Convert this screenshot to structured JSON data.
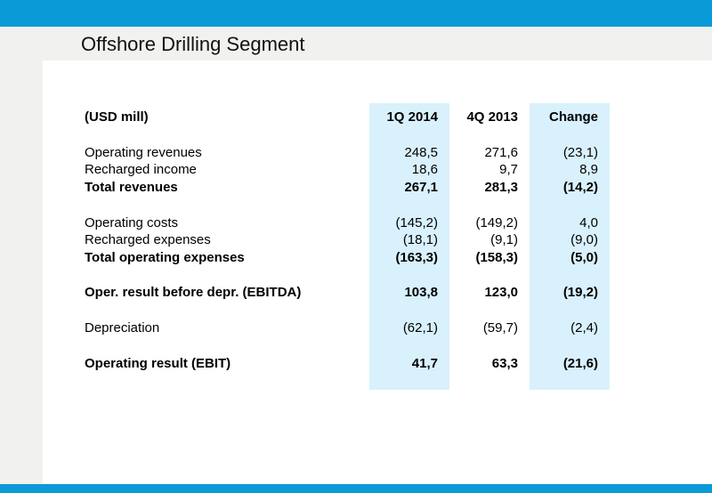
{
  "title": "Offshore Drilling Segment",
  "header": {
    "label": "(USD mill)",
    "col1": "1Q 2014",
    "col2": "4Q 2013",
    "col3": "Change"
  },
  "rows": [
    {
      "label": "Operating revenues",
      "c1": "248,5",
      "c2": "271,6",
      "c3": "(23,1)",
      "bold": false
    },
    {
      "label": "Recharged income",
      "c1": "18,6",
      "c2": "9,7",
      "c3": "8,9",
      "bold": false
    },
    {
      "label": "Total revenues",
      "c1": "267,1",
      "c2": "281,3",
      "c3": "(14,2)",
      "bold": true
    },
    {
      "label": "Operating costs",
      "c1": "(145,2)",
      "c2": "(149,2)",
      "c3": "4,0",
      "bold": false
    },
    {
      "label": "Recharged expenses",
      "c1": "(18,1)",
      "c2": "(9,1)",
      "c3": "(9,0)",
      "bold": false
    },
    {
      "label": "Total operating expenses",
      "c1": "(163,3)",
      "c2": "(158,3)",
      "c3": "(5,0)",
      "bold": true
    },
    {
      "label": "Oper. result before depr. (EBITDA)",
      "c1": "103,8",
      "c2": "123,0",
      "c3": "(19,2)",
      "bold": true
    },
    {
      "label": "Depreciation",
      "c1": "(62,1)",
      "c2": "(59,7)",
      "c3": "(2,4)",
      "bold": false
    },
    {
      "label": "Operating result (EBIT)",
      "c1": "41,7",
      "c2": "63,3",
      "c3": "(21,6)",
      "bold": true
    }
  ],
  "colors": {
    "brand_blue": "#0b9ad8",
    "column_highlight": "#d9f1fc",
    "band_gray": "#f1f1ef"
  }
}
